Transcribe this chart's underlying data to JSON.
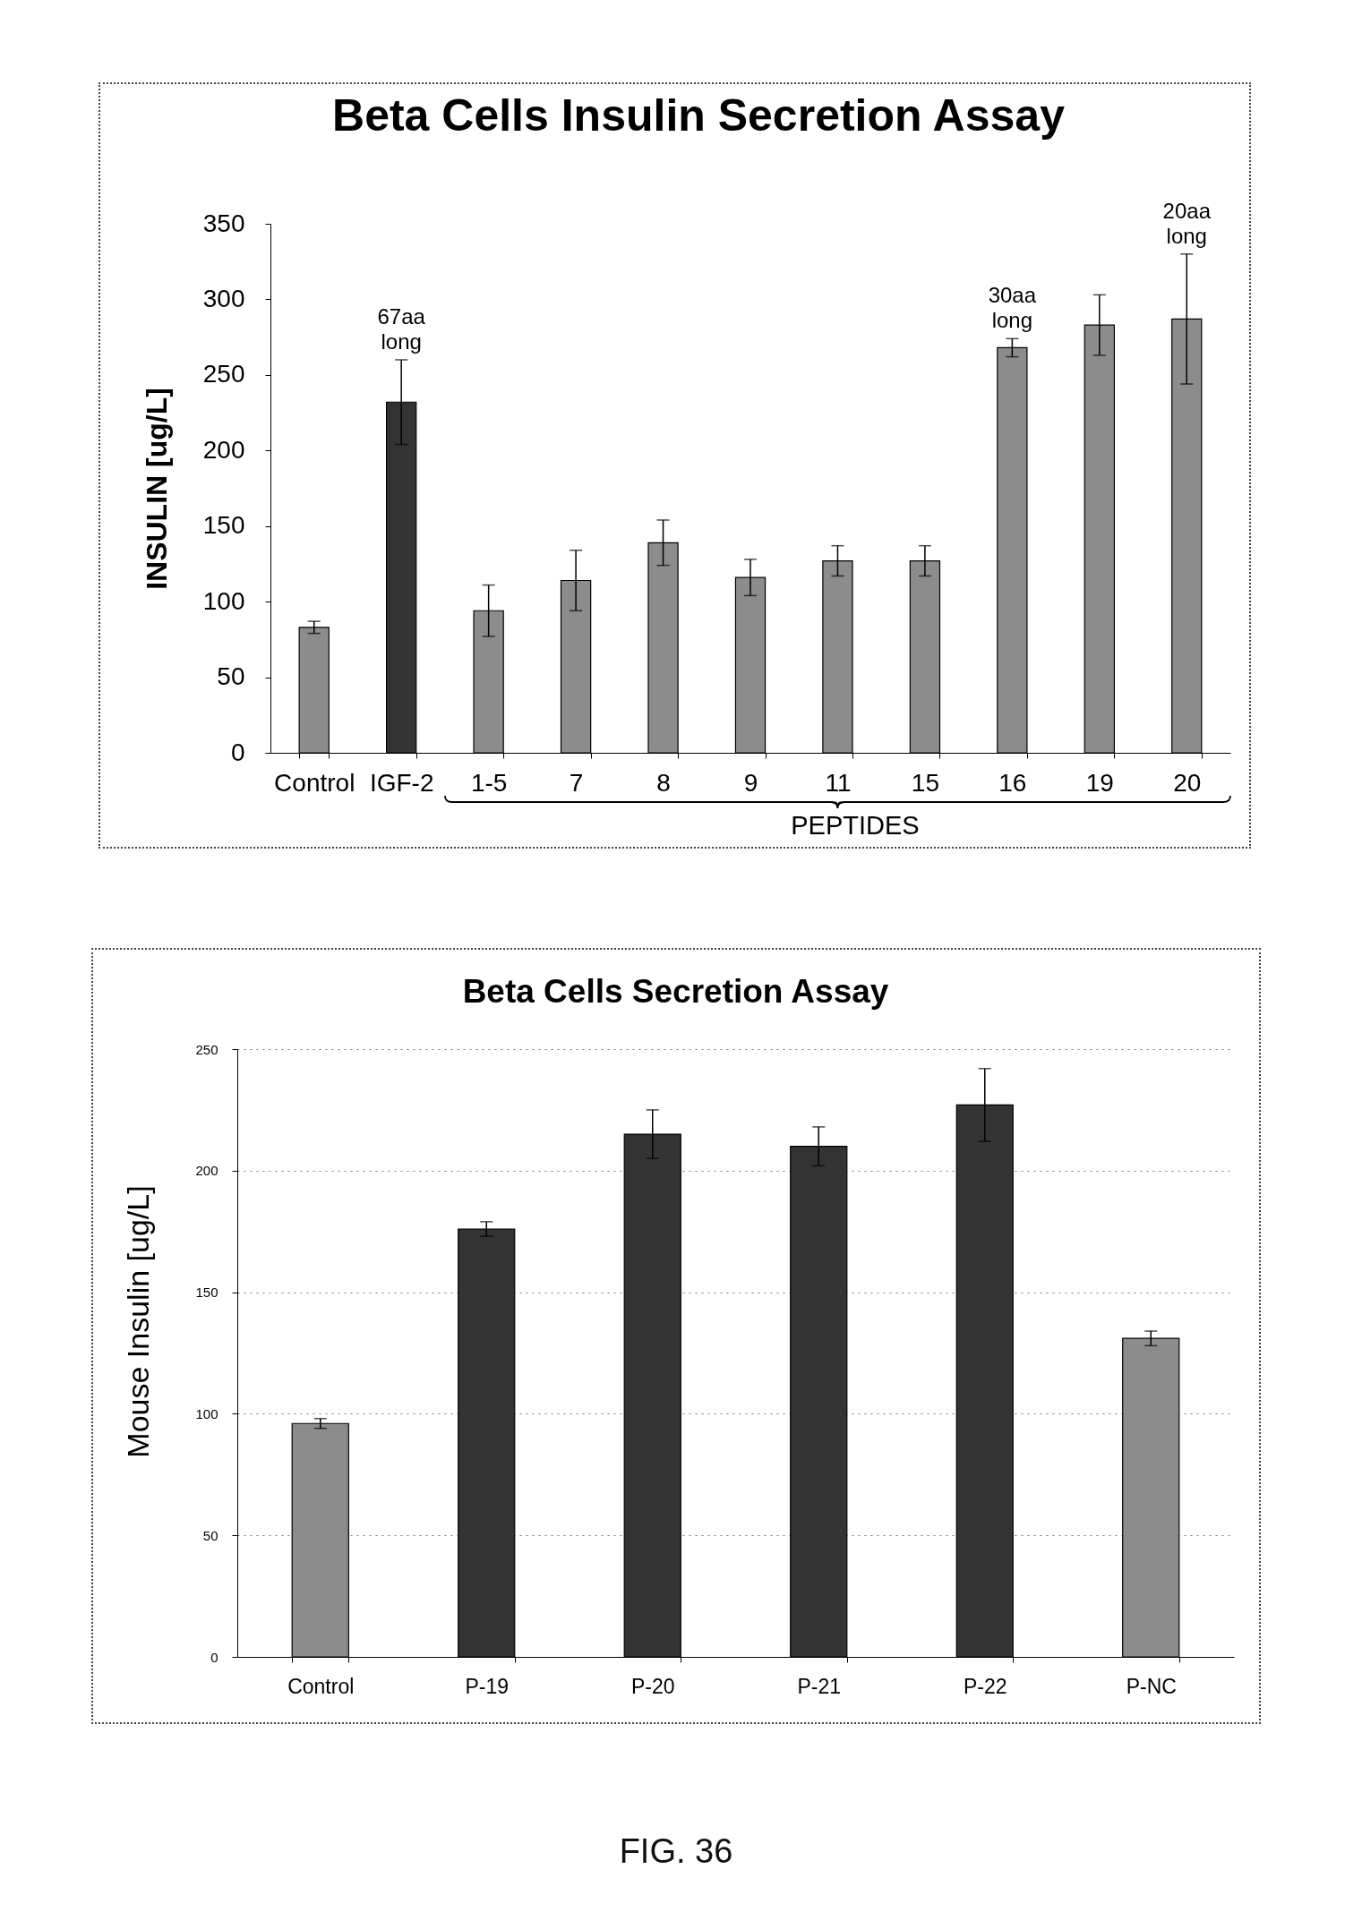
{
  "chart_data": [
    {
      "type": "bar",
      "title": "Beta Cells Insulin Secretion Assay",
      "ylabel": "INSULIN [ug/L]",
      "xlabel": "PEPTIDES",
      "categories": [
        "Control",
        "IGF-2",
        "1-5",
        "7",
        "8",
        "9",
        "11",
        "15",
        "16",
        "19",
        "20"
      ],
      "values": [
        83,
        232,
        94,
        114,
        139,
        116,
        127,
        127,
        268,
        283,
        287
      ],
      "errors": [
        4,
        28,
        17,
        20,
        15,
        12,
        10,
        10,
        6,
        20,
        43
      ],
      "colors": [
        "#8c8c8c",
        "#333333",
        "#8c8c8c",
        "#8c8c8c",
        "#8c8c8c",
        "#8c8c8c",
        "#8c8c8c",
        "#8c8c8c",
        "#8c8c8c",
        "#8c8c8c",
        "#8c8c8c"
      ],
      "ylim": [
        0,
        350
      ],
      "yticks": [
        0,
        50,
        100,
        150,
        200,
        250,
        300,
        350
      ],
      "annotations": [
        {
          "text": "67aa long",
          "x": "IGF-2",
          "y": 260
        },
        {
          "text": "30aa long",
          "x": "16",
          "y": 274
        },
        {
          "text": "20aa long",
          "x": "20",
          "y": 330
        }
      ]
    },
    {
      "type": "bar",
      "title": "Beta Cells Secretion Assay",
      "ylabel": "Mouse Insulin [ug/L]",
      "categories": [
        "Control",
        "P-19",
        "P-20",
        "P-21",
        "P-22",
        "P-NC"
      ],
      "values": [
        96,
        176,
        215,
        210,
        227,
        131
      ],
      "errors": [
        2,
        3,
        10,
        8,
        15,
        3
      ],
      "colors": [
        "#8c8c8c",
        "#333333",
        "#333333",
        "#333333",
        "#333333",
        "#8c8c8c"
      ],
      "ylim": [
        0,
        250
      ],
      "yticks": [
        0,
        50,
        100,
        150,
        200,
        250
      ],
      "grid": "y",
      "annotations": [
        "FIG. 36"
      ]
    }
  ]
}
